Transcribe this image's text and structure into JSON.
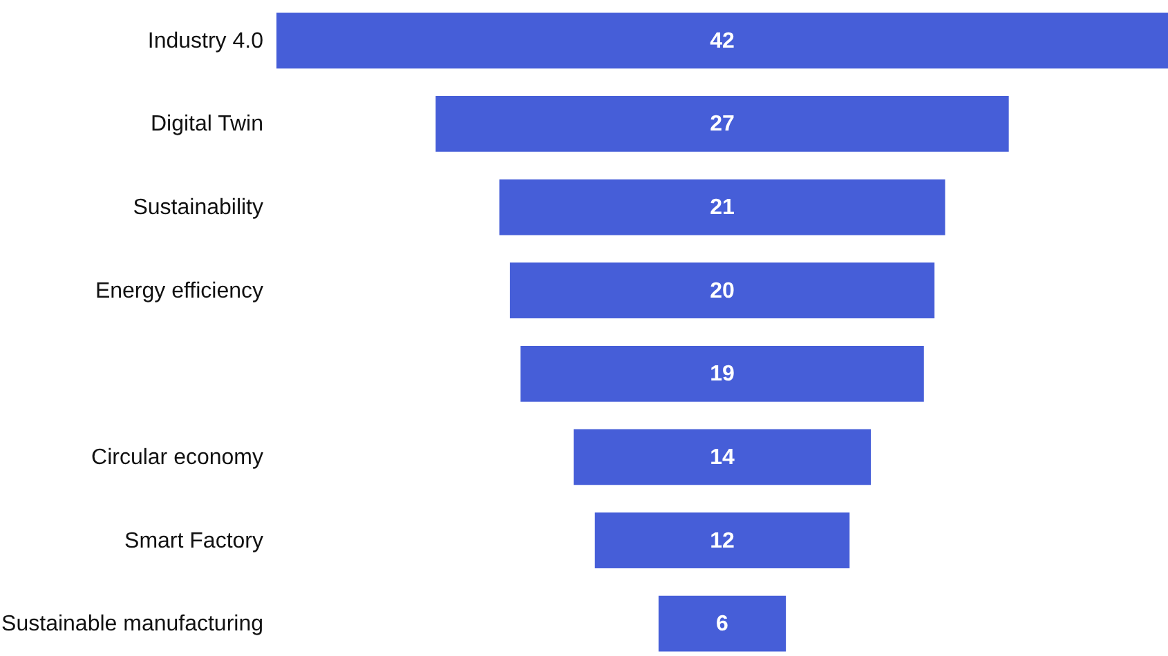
{
  "chart_data": {
    "type": "other",
    "categories": [
      "Industry 4.0",
      "Digital Twin",
      "Sustainability",
      "Energy efficiency",
      null,
      "Circular economy",
      "Smart Factory",
      "Sustainable manufacturing"
    ],
    "values": [
      42,
      27,
      21,
      20,
      19,
      14,
      12,
      6
    ],
    "color": "#465ed8",
    "data_labels": true
  }
}
